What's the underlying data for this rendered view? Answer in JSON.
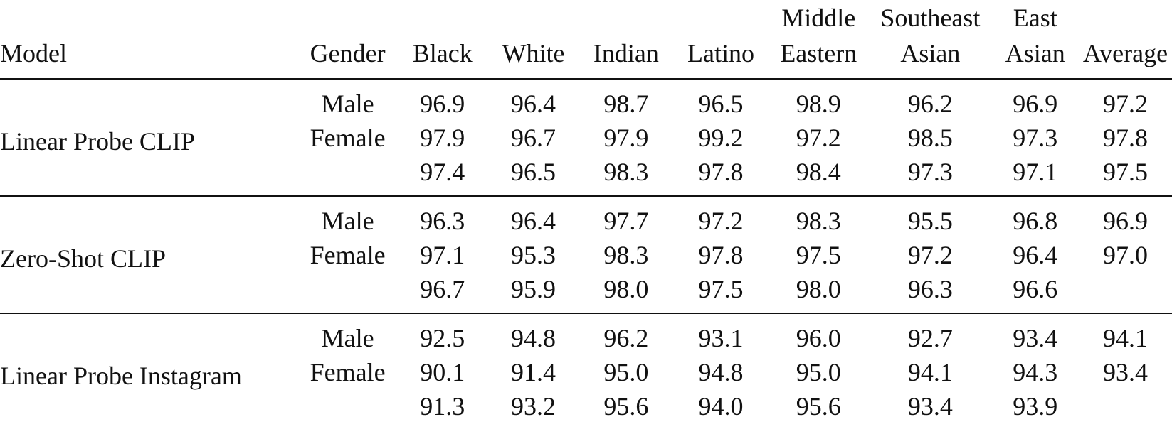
{
  "table": {
    "headers": [
      {
        "key": "model",
        "lines": [
          "Model"
        ]
      },
      {
        "key": "gender",
        "lines": [
          "Gender"
        ]
      },
      {
        "key": "black",
        "lines": [
          "Black"
        ]
      },
      {
        "key": "white",
        "lines": [
          "White"
        ]
      },
      {
        "key": "indian",
        "lines": [
          "Indian"
        ]
      },
      {
        "key": "latino",
        "lines": [
          "Latino"
        ]
      },
      {
        "key": "middle-eastern",
        "lines": [
          "Middle",
          "Eastern"
        ]
      },
      {
        "key": "southeast-asian",
        "lines": [
          "Southeast",
          "Asian"
        ]
      },
      {
        "key": "east-asian",
        "lines": [
          "East",
          "Asian"
        ]
      },
      {
        "key": "average",
        "lines": [
          "Average"
        ]
      }
    ],
    "groups": [
      {
        "model": "Linear Probe CLIP",
        "rows": [
          {
            "gender": "Male",
            "values": [
              "96.9",
              "96.4",
              "98.7",
              "96.5",
              "98.9",
              "96.2",
              "96.9",
              "97.2"
            ]
          },
          {
            "gender": "Female",
            "values": [
              "97.9",
              "96.7",
              "97.9",
              "99.2",
              "97.2",
              "98.5",
              "97.3",
              "97.8"
            ]
          },
          {
            "gender": "",
            "values": [
              "97.4",
              "96.5",
              "98.3",
              "97.8",
              "98.4",
              "97.3",
              "97.1",
              "97.5"
            ]
          }
        ]
      },
      {
        "model": "Zero-Shot CLIP",
        "rows": [
          {
            "gender": "Male",
            "values": [
              "96.3",
              "96.4",
              "97.7",
              "97.2",
              "98.3",
              "95.5",
              "96.8",
              "96.9"
            ]
          },
          {
            "gender": "Female",
            "values": [
              "97.1",
              "95.3",
              "98.3",
              "97.8",
              "97.5",
              "97.2",
              "96.4",
              "97.0"
            ]
          },
          {
            "gender": "",
            "values": [
              "96.7",
              "95.9",
              "98.0",
              "97.5",
              "98.0",
              "96.3",
              "96.6",
              ""
            ]
          }
        ]
      },
      {
        "model": "Linear Probe Instagram",
        "rows": [
          {
            "gender": "Male",
            "values": [
              "92.5",
              "94.8",
              "96.2",
              "93.1",
              "96.0",
              "92.7",
              "93.4",
              "94.1"
            ]
          },
          {
            "gender": "Female",
            "values": [
              "90.1",
              "91.4",
              "95.0",
              "94.8",
              "95.0",
              "94.1",
              "94.3",
              "93.4"
            ]
          },
          {
            "gender": "",
            "values": [
              "91.3",
              "93.2",
              "95.6",
              "94.0",
              "95.6",
              "93.4",
              "93.9",
              ""
            ]
          }
        ]
      }
    ]
  }
}
